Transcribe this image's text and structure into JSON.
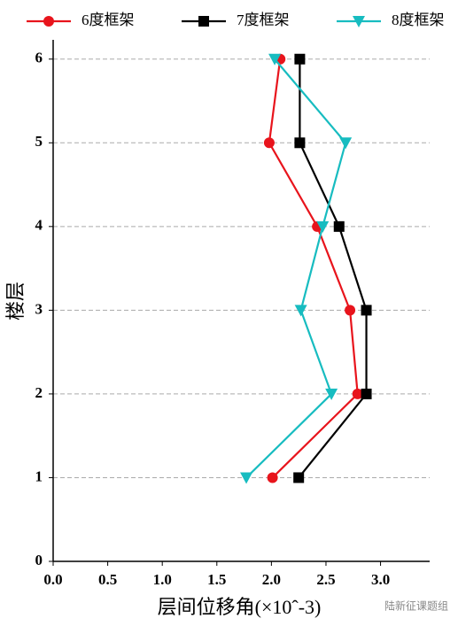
{
  "chart_data": {
    "type": "line",
    "xlabel": "层间位移角(×10ˆ-3)",
    "ylabel": "楼层",
    "watermark": "陆新征课题组",
    "y": [
      1,
      2,
      3,
      4,
      5,
      6
    ],
    "series": [
      {
        "name": "6度框架",
        "color": "#e8141c",
        "marker": "circle",
        "values": [
          2.01,
          2.79,
          2.72,
          2.42,
          1.98,
          2.08
        ]
      },
      {
        "name": "7度框架",
        "color": "#000000",
        "marker": "square",
        "values": [
          2.25,
          2.87,
          2.87,
          2.62,
          2.26,
          2.26
        ]
      },
      {
        "name": "8度框架",
        "color": "#17bcc0",
        "marker": "triangle-down",
        "values": [
          1.77,
          2.55,
          2.27,
          2.47,
          2.68,
          2.03
        ]
      }
    ],
    "xlim": [
      0,
      3.45
    ],
    "xticks": [
      {
        "value": 0,
        "label": "0.0"
      },
      0.5,
      {
        "value": 1,
        "label": "1.0"
      },
      1.5,
      {
        "value": 2,
        "label": "2.0"
      },
      2.5,
      {
        "value": 3,
        "label": "3.0"
      }
    ],
    "ylim": [
      0,
      6.23
    ],
    "yticks": [
      0,
      1,
      2,
      3,
      4,
      5,
      6
    ],
    "grid": true,
    "legend": "top"
  }
}
